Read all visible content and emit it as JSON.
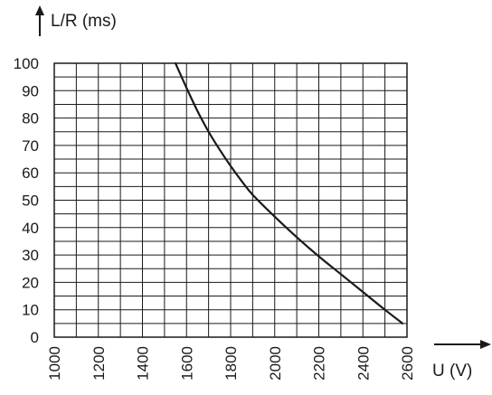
{
  "chart_data": {
    "type": "line",
    "title": "",
    "xlabel": "U (V)",
    "ylabel": "L/R (ms)",
    "xlim": [
      1000,
      2600
    ],
    "ylim": [
      0,
      100
    ],
    "x_ticks": [
      "1000",
      "1200",
      "1400",
      "1600",
      "1800",
      "2000",
      "2200",
      "2400",
      "2600"
    ],
    "y_ticks": [
      "0",
      "10",
      "20",
      "30",
      "40",
      "50",
      "60",
      "70",
      "80",
      "90",
      "100"
    ],
    "grid": true,
    "legend": "none",
    "series": [
      {
        "x": [
          1550,
          1600,
          1650,
          1700,
          1750,
          1800,
          1850,
          1900,
          2000,
          2100,
          2200,
          2300,
          2400,
          2500,
          2580
        ],
        "y": [
          100,
          91,
          82.5,
          75,
          68.5,
          62.5,
          57,
          52,
          44,
          36.5,
          29.5,
          23,
          16.5,
          10,
          5
        ]
      }
    ],
    "colors": {
      "line": "#1a1a1a",
      "grid": "#1a1a1a"
    }
  }
}
